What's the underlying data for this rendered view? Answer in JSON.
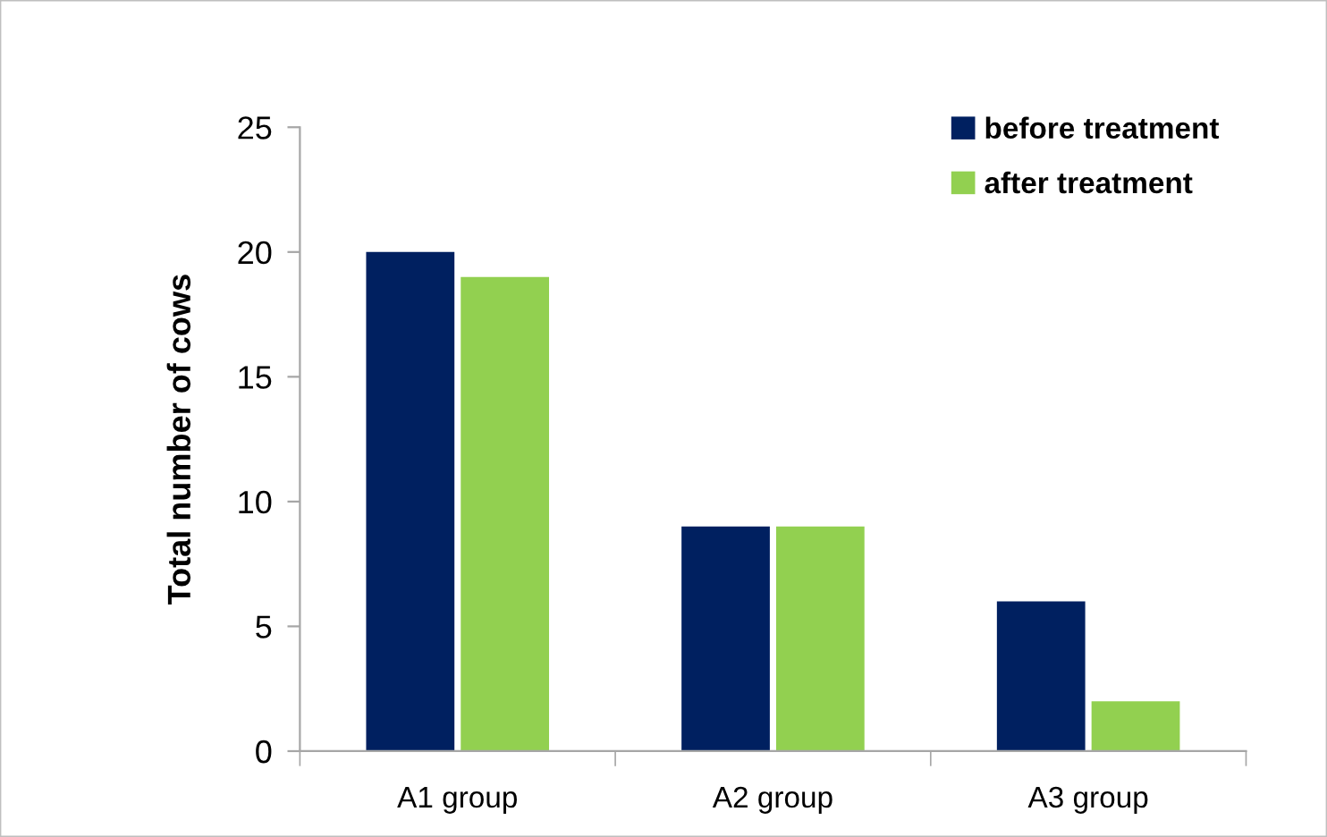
{
  "chart_data": {
    "type": "bar",
    "ylabel": "Total number of cows",
    "categories": [
      "A1 group",
      "A2 group",
      "A3 group"
    ],
    "series": [
      {
        "name": "before treatment",
        "color": "#002060",
        "values": [
          20,
          9,
          6
        ]
      },
      {
        "name": "after treatment",
        "color": "#92d050",
        "values": [
          19,
          9,
          2
        ]
      }
    ],
    "ylim": [
      0,
      25
    ],
    "yticks": [
      0,
      5,
      10,
      15,
      20,
      25
    ],
    "grid": false,
    "legend": "top right"
  }
}
